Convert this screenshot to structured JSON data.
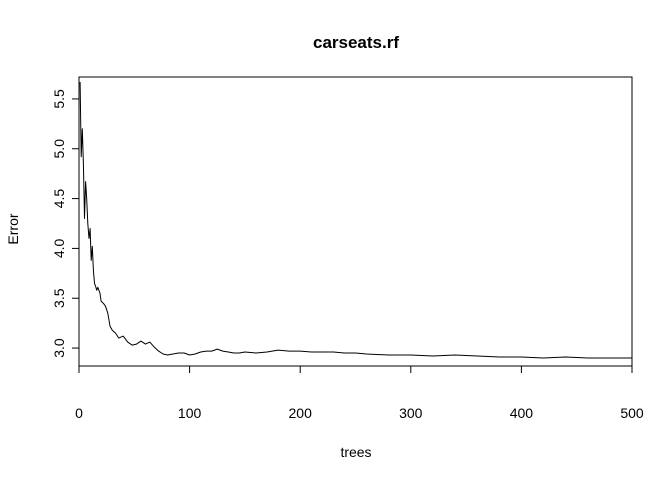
{
  "chart_data": {
    "type": "line",
    "title": "carseats.rf",
    "xlabel": "trees",
    "ylabel": "Error",
    "xlim": [
      0,
      500
    ],
    "ylim": [
      2.82,
      5.72
    ],
    "xticks": [
      0,
      100,
      200,
      300,
      400,
      500
    ],
    "yticks": [
      3.0,
      3.5,
      4.0,
      4.5,
      5.0,
      5.5
    ],
    "ytick_labels": [
      "3.0",
      "3.5",
      "4.0",
      "4.5",
      "5.0",
      "5.5"
    ],
    "grid": false,
    "legend": "none",
    "line_color": "#000000",
    "series": [
      {
        "x": [
          1,
          2,
          3,
          4,
          5,
          6,
          7,
          8,
          9,
          10,
          11,
          12,
          13,
          14,
          15,
          16,
          17,
          18,
          19,
          20,
          22,
          24,
          26,
          28,
          30,
          33,
          36,
          40,
          44,
          48,
          52,
          56,
          60,
          64,
          68,
          72,
          76,
          80,
          85,
          90,
          95,
          100,
          105,
          110,
          115,
          120,
          125,
          130,
          135,
          140,
          145,
          150,
          160,
          170,
          180,
          190,
          200,
          210,
          220,
          230,
          240,
          250,
          260,
          280,
          300,
          320,
          340,
          360,
          380,
          400,
          420,
          440,
          460,
          480,
          500
        ],
        "y": [
          5.67,
          4.92,
          5.2,
          4.85,
          4.3,
          4.67,
          4.5,
          4.25,
          4.1,
          4.2,
          3.88,
          4.02,
          3.78,
          3.65,
          3.62,
          3.58,
          3.61,
          3.58,
          3.55,
          3.47,
          3.45,
          3.42,
          3.35,
          3.22,
          3.18,
          3.15,
          3.1,
          3.12,
          3.06,
          3.03,
          3.04,
          3.07,
          3.04,
          3.06,
          3.01,
          2.97,
          2.94,
          2.93,
          2.94,
          2.95,
          2.95,
          2.93,
          2.94,
          2.96,
          2.97,
          2.97,
          2.99,
          2.97,
          2.96,
          2.95,
          2.95,
          2.96,
          2.95,
          2.96,
          2.98,
          2.97,
          2.97,
          2.96,
          2.96,
          2.96,
          2.95,
          2.95,
          2.94,
          2.93,
          2.93,
          2.92,
          2.93,
          2.92,
          2.91,
          2.91,
          2.9,
          2.91,
          2.9,
          2.9,
          2.9
        ]
      }
    ]
  }
}
